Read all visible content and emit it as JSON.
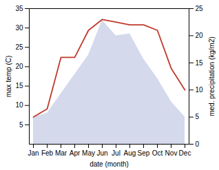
{
  "chart_data": {
    "type": "line",
    "categories": [
      "Jan",
      "Feb",
      "Mar",
      "Apr",
      "May",
      "Jun",
      "Jul",
      "Aug",
      "Sep",
      "Oct",
      "Nov",
      "Dec"
    ],
    "xlabel": "date (month)",
    "ylabel": "max temp (C)",
    "y2label": "med. precipitation (kg/m2)",
    "ylim": [
      0,
      35
    ],
    "yticks": [
      5,
      10,
      15,
      20,
      25,
      30,
      35
    ],
    "y2lim": [
      0,
      25
    ],
    "y2ticks": [
      0,
      5,
      10,
      15,
      20,
      25
    ],
    "series": [
      {
        "type": "area",
        "color": "#b8c0e0",
        "values": [
          7,
          8,
          13,
          18,
          23,
          32,
          28,
          28.5,
          22,
          17,
          11,
          7
        ]
      },
      {
        "type": "line",
        "color": "#c0392b",
        "axis": "y2",
        "values": [
          5,
          6.5,
          16,
          16,
          21,
          23,
          22.5,
          22,
          22,
          21,
          14,
          10
        ]
      }
    ]
  }
}
